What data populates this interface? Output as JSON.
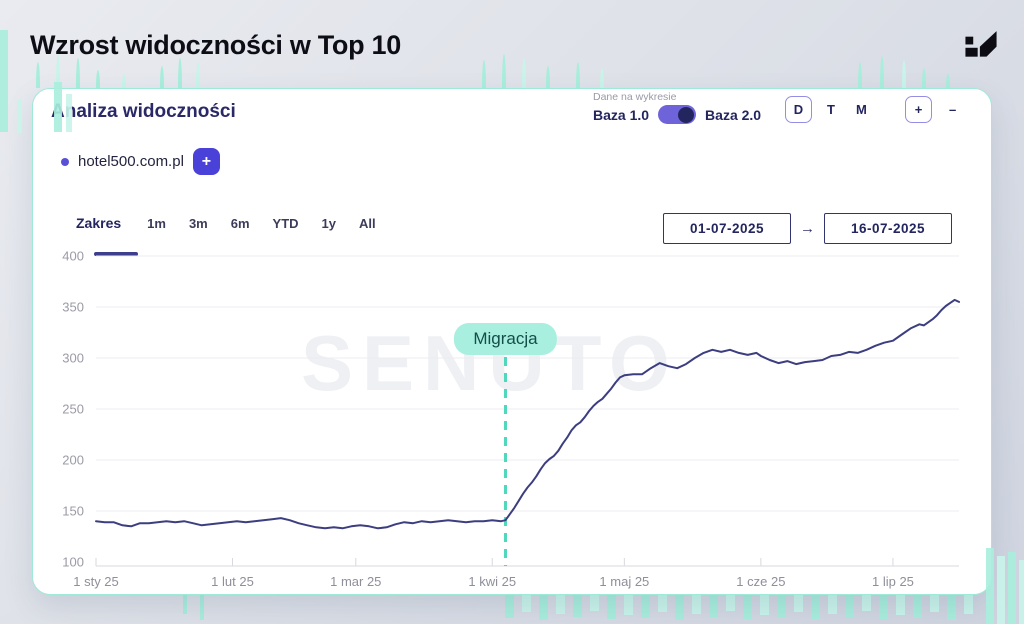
{
  "page": {
    "title": "Wzrost widoczności w Top 10"
  },
  "panel": {
    "title": "Analiza widoczności",
    "dataset_toggle": {
      "caption": "Dane na wykresie",
      "left_label": "Baza 1.0",
      "right_label": "Baza 2.0"
    },
    "granularity": {
      "options": [
        "D",
        "T",
        "M"
      ],
      "active": "D"
    },
    "zoom_controls": {
      "zoom_in": "+",
      "zoom_out": "–"
    },
    "domain": {
      "label": "hotel500.com.pl",
      "add_button": "+"
    },
    "range": {
      "label": "Zakres",
      "options": [
        "1m",
        "3m",
        "6m",
        "YTD",
        "1y",
        "All"
      ]
    },
    "date_range": {
      "from": "01-07-2025",
      "arrow": "→",
      "to": "16-07-2025"
    },
    "watermark": "SENUTO"
  },
  "colors": {
    "accent_indigo": "#4a41d8",
    "line": "#3c3e80",
    "mint": "#a9efe0",
    "annotation": "#4fd8bc"
  },
  "chart_data": {
    "type": "line",
    "title": "Analiza widoczności",
    "xlabel": "",
    "ylabel": "",
    "ylim": [
      100,
      400
    ],
    "y_ticks": [
      100,
      150,
      200,
      250,
      300,
      350,
      400
    ],
    "x_domain": [
      0,
      196
    ],
    "x_ticks": [
      {
        "day": 0,
        "label": "1 sty 25"
      },
      {
        "day": 31,
        "label": "1 lut 25"
      },
      {
        "day": 59,
        "label": "1 mar 25"
      },
      {
        "day": 90,
        "label": "1 kwi 25"
      },
      {
        "day": 120,
        "label": "1 maj 25"
      },
      {
        "day": 151,
        "label": "1 cze 25"
      },
      {
        "day": 181,
        "label": "1 lip 25"
      }
    ],
    "grid": true,
    "legend": "none",
    "annotation": {
      "label": "Migracja",
      "day": 93,
      "color": "#4fd8bc"
    },
    "series": [
      {
        "name": "hotel500.com.pl",
        "color": "#3c3e80",
        "points": [
          [
            0,
            140
          ],
          [
            2,
            139
          ],
          [
            4,
            139
          ],
          [
            6,
            136
          ],
          [
            8,
            135
          ],
          [
            10,
            138
          ],
          [
            12,
            138
          ],
          [
            14,
            139
          ],
          [
            16,
            140
          ],
          [
            18,
            139
          ],
          [
            20,
            140
          ],
          [
            22,
            138
          ],
          [
            24,
            136
          ],
          [
            26,
            137
          ],
          [
            28,
            138
          ],
          [
            30,
            139
          ],
          [
            32,
            140
          ],
          [
            34,
            139
          ],
          [
            36,
            140
          ],
          [
            38,
            141
          ],
          [
            40,
            142
          ],
          [
            42,
            143
          ],
          [
            44,
            141
          ],
          [
            46,
            138
          ],
          [
            48,
            136
          ],
          [
            50,
            134
          ],
          [
            52,
            133
          ],
          [
            54,
            134
          ],
          [
            56,
            133
          ],
          [
            58,
            135
          ],
          [
            60,
            136
          ],
          [
            62,
            135
          ],
          [
            64,
            133
          ],
          [
            66,
            134
          ],
          [
            68,
            137
          ],
          [
            70,
            139
          ],
          [
            72,
            138
          ],
          [
            74,
            140
          ],
          [
            76,
            139
          ],
          [
            78,
            140
          ],
          [
            80,
            141
          ],
          [
            82,
            140
          ],
          [
            84,
            139
          ],
          [
            86,
            140
          ],
          [
            88,
            140
          ],
          [
            90,
            141
          ],
          [
            92,
            140
          ],
          [
            93,
            141
          ],
          [
            94,
            147
          ],
          [
            95,
            153
          ],
          [
            96,
            160
          ],
          [
            97,
            167
          ],
          [
            98,
            173
          ],
          [
            99,
            178
          ],
          [
            100,
            184
          ],
          [
            101,
            191
          ],
          [
            102,
            197
          ],
          [
            103,
            201
          ],
          [
            104,
            204
          ],
          [
            105,
            209
          ],
          [
            106,
            216
          ],
          [
            107,
            222
          ],
          [
            108,
            229
          ],
          [
            109,
            234
          ],
          [
            110,
            237
          ],
          [
            111,
            242
          ],
          [
            112,
            248
          ],
          [
            113,
            253
          ],
          [
            114,
            257
          ],
          [
            115,
            260
          ],
          [
            116,
            265
          ],
          [
            117,
            270
          ],
          [
            118,
            276
          ],
          [
            119,
            281
          ],
          [
            120,
            283
          ],
          [
            122,
            284
          ],
          [
            124,
            284
          ],
          [
            126,
            290
          ],
          [
            128,
            295
          ],
          [
            130,
            292
          ],
          [
            132,
            290
          ],
          [
            134,
            294
          ],
          [
            136,
            300
          ],
          [
            138,
            305
          ],
          [
            140,
            308
          ],
          [
            142,
            306
          ],
          [
            144,
            308
          ],
          [
            146,
            305
          ],
          [
            148,
            303
          ],
          [
            150,
            305
          ],
          [
            151,
            302
          ],
          [
            153,
            298
          ],
          [
            155,
            295
          ],
          [
            157,
            297
          ],
          [
            159,
            294
          ],
          [
            161,
            296
          ],
          [
            163,
            297
          ],
          [
            165,
            298
          ],
          [
            167,
            302
          ],
          [
            169,
            303
          ],
          [
            171,
            306
          ],
          [
            173,
            305
          ],
          [
            175,
            308
          ],
          [
            177,
            312
          ],
          [
            179,
            315
          ],
          [
            181,
            317
          ],
          [
            183,
            323
          ],
          [
            185,
            329
          ],
          [
            187,
            333
          ],
          [
            188,
            332
          ],
          [
            189,
            335
          ],
          [
            190,
            338
          ],
          [
            191,
            342
          ],
          [
            192,
            347
          ],
          [
            193,
            351
          ],
          [
            194,
            354
          ],
          [
            195,
            357
          ],
          [
            196,
            355
          ]
        ]
      }
    ]
  }
}
